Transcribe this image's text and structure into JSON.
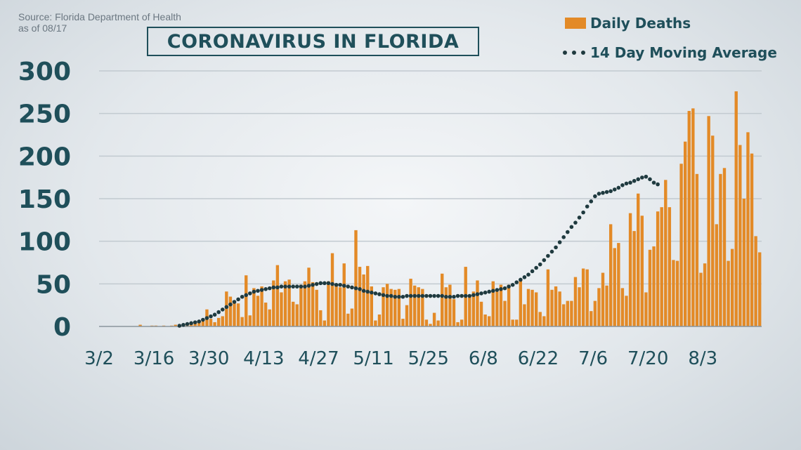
{
  "header": {
    "source_line1": "Source: Florida Department of Health",
    "source_line2": "as of 08/17",
    "title": "CORONAVIRUS IN FLORIDA"
  },
  "legend": {
    "bars_label": "Daily Deaths",
    "line_label": "14 Day Moving Average"
  },
  "colors": {
    "bar": "#e38a27",
    "dots": "#1f3a3f",
    "text": "#1f4f5a",
    "grid": "#c2cad0"
  },
  "chart_data": {
    "type": "bar",
    "title": "CORONAVIRUS IN FLORIDA",
    "ylim": [
      0,
      300
    ],
    "yticks": [
      0,
      50,
      100,
      150,
      200,
      250,
      300
    ],
    "xtick_labels": [
      "3/2",
      "3/16",
      "3/30",
      "4/13",
      "4/27",
      "5/11",
      "5/25",
      "6/8",
      "6/22",
      "7/6",
      "7/20",
      "8/3"
    ],
    "grid": true,
    "legend_position": "top-right",
    "series": [
      {
        "name": "Daily Deaths",
        "kind": "bar",
        "values": [
          0,
          0,
          0,
          0,
          0,
          0,
          0,
          0,
          0,
          0,
          2,
          0,
          0,
          1,
          1,
          0,
          1,
          0,
          1,
          2,
          2,
          0,
          2,
          3,
          4,
          6,
          6,
          20,
          9,
          5,
          10,
          12,
          41,
          35,
          28,
          27,
          11,
          60,
          13,
          45,
          36,
          47,
          28,
          20,
          54,
          72,
          40,
          53,
          55,
          29,
          26,
          49,
          53,
          69,
          52,
          43,
          19,
          7,
          53,
          86,
          50,
          46,
          74,
          15,
          21,
          113,
          70,
          61,
          71,
          47,
          7,
          14,
          46,
          50,
          44,
          43,
          44,
          9,
          25,
          56,
          48,
          46,
          44,
          8,
          3,
          16,
          7,
          62,
          46,
          49,
          32,
          5,
          8,
          70,
          36,
          41,
          54,
          29,
          14,
          12,
          53,
          41,
          49,
          30,
          49,
          8,
          8,
          55,
          26,
          44,
          43,
          40,
          17,
          12,
          67,
          43,
          47,
          41,
          26,
          30,
          30,
          58,
          46,
          68,
          67,
          18,
          30,
          45,
          63,
          48,
          120,
          92,
          98,
          45,
          36,
          133,
          112,
          156,
          130,
          40,
          90,
          94,
          135,
          140,
          172,
          140,
          78,
          77,
          191,
          217,
          253,
          256,
          179,
          63,
          74,
          247,
          224,
          120,
          179,
          186,
          77,
          91,
          276,
          213,
          150,
          228,
          203,
          106,
          87
        ]
      },
      {
        "name": "14 Day Moving Average",
        "kind": "dotted-line",
        "start_index": 20,
        "values": [
          0,
          1,
          2,
          3,
          4,
          5,
          7,
          9,
          11,
          13,
          16,
          19,
          22,
          25,
          28,
          31,
          34,
          36,
          38,
          40,
          41,
          42,
          43,
          44,
          45,
          45,
          46,
          46,
          46,
          46,
          46,
          46,
          46,
          47,
          48,
          49,
          50,
          50,
          50,
          49,
          48,
          48,
          47,
          46,
          45,
          44,
          43,
          41,
          40,
          39,
          38,
          37,
          36,
          35,
          35,
          34,
          34,
          34,
          35,
          35,
          35,
          35,
          35,
          35,
          35,
          35,
          35,
          35,
          34,
          34,
          34,
          35,
          35,
          35,
          35,
          36,
          37,
          38,
          39,
          40,
          41,
          42,
          43,
          44,
          46,
          48,
          51,
          54,
          57,
          60,
          64,
          68,
          72,
          77,
          82,
          87,
          92,
          98,
          104,
          110,
          116,
          121,
          127,
          133,
          140,
          146,
          152,
          155,
          156,
          157,
          158,
          160,
          162,
          165,
          167,
          168,
          170,
          172,
          174,
          175,
          172,
          168,
          166
        ]
      }
    ]
  }
}
